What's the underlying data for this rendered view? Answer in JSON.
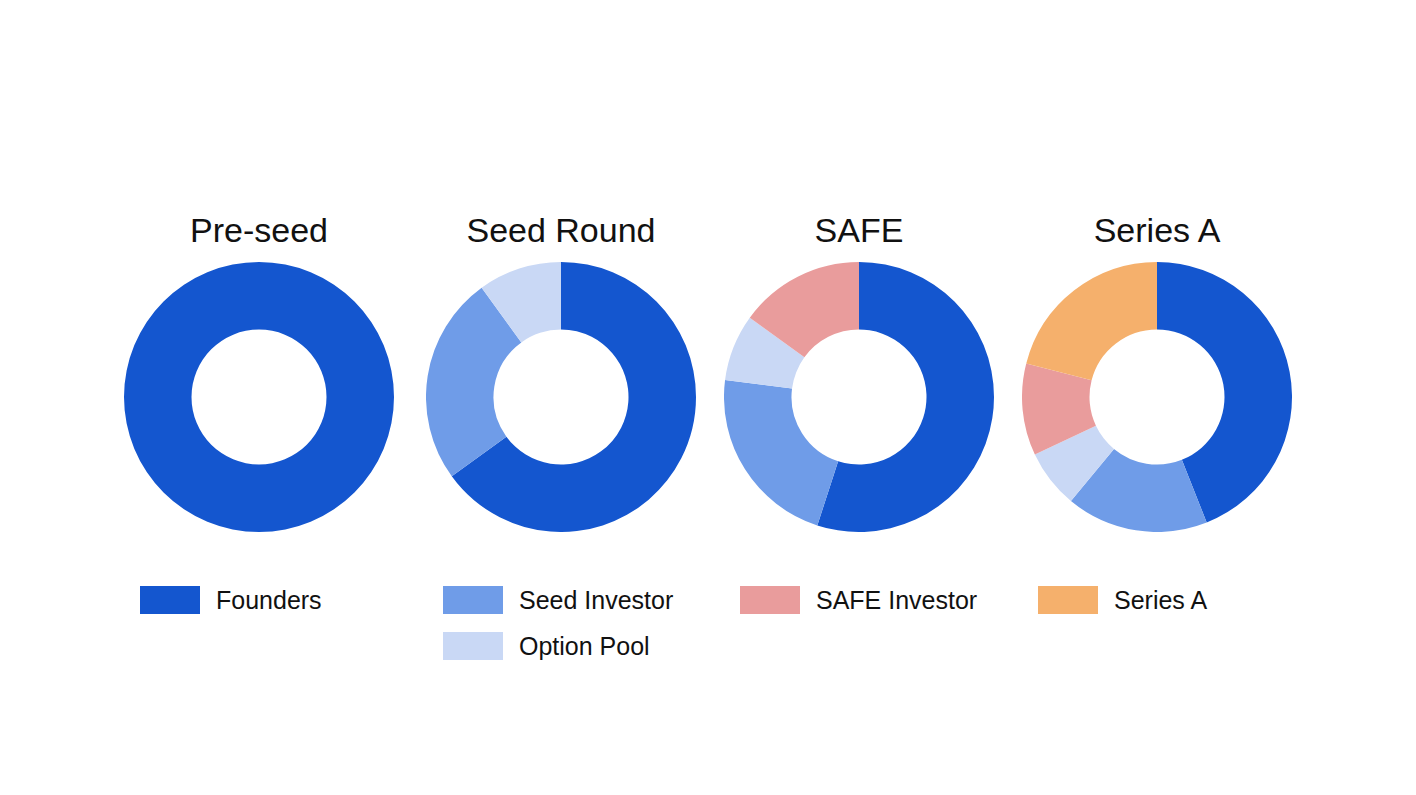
{
  "chart_data": [
    {
      "type": "doughnut",
      "title": "Pre-seed",
      "legend": "bottom",
      "categories": [
        "Founders"
      ],
      "values": [
        100
      ],
      "colors": [
        "#1456cf"
      ]
    },
    {
      "type": "doughnut",
      "title": "Seed Round",
      "legend": "bottom",
      "categories": [
        "Founders",
        "Seed Investor",
        "Option Pool"
      ],
      "values": [
        65,
        25,
        10
      ],
      "colors": [
        "#1456cf",
        "#6f9ce8",
        "#c9d8f5"
      ]
    },
    {
      "type": "doughnut",
      "title": "SAFE",
      "legend": "bottom",
      "categories": [
        "Founders",
        "Seed Investor",
        "Option Pool",
        "SAFE Investor"
      ],
      "values": [
        55,
        22,
        8,
        15
      ],
      "colors": [
        "#1456cf",
        "#6f9ce8",
        "#c9d8f5",
        "#e99c9c"
      ]
    },
    {
      "type": "doughnut",
      "title": "Series A",
      "legend": "bottom",
      "categories": [
        "Founders",
        "Seed Investor",
        "Option Pool",
        "SAFE Investor",
        "Series A"
      ],
      "values": [
        44,
        17,
        7,
        11,
        21
      ],
      "colors": [
        "#1456cf",
        "#6f9ce8",
        "#c9d8f5",
        "#e99c9c",
        "#f5b06c"
      ]
    }
  ]
}
